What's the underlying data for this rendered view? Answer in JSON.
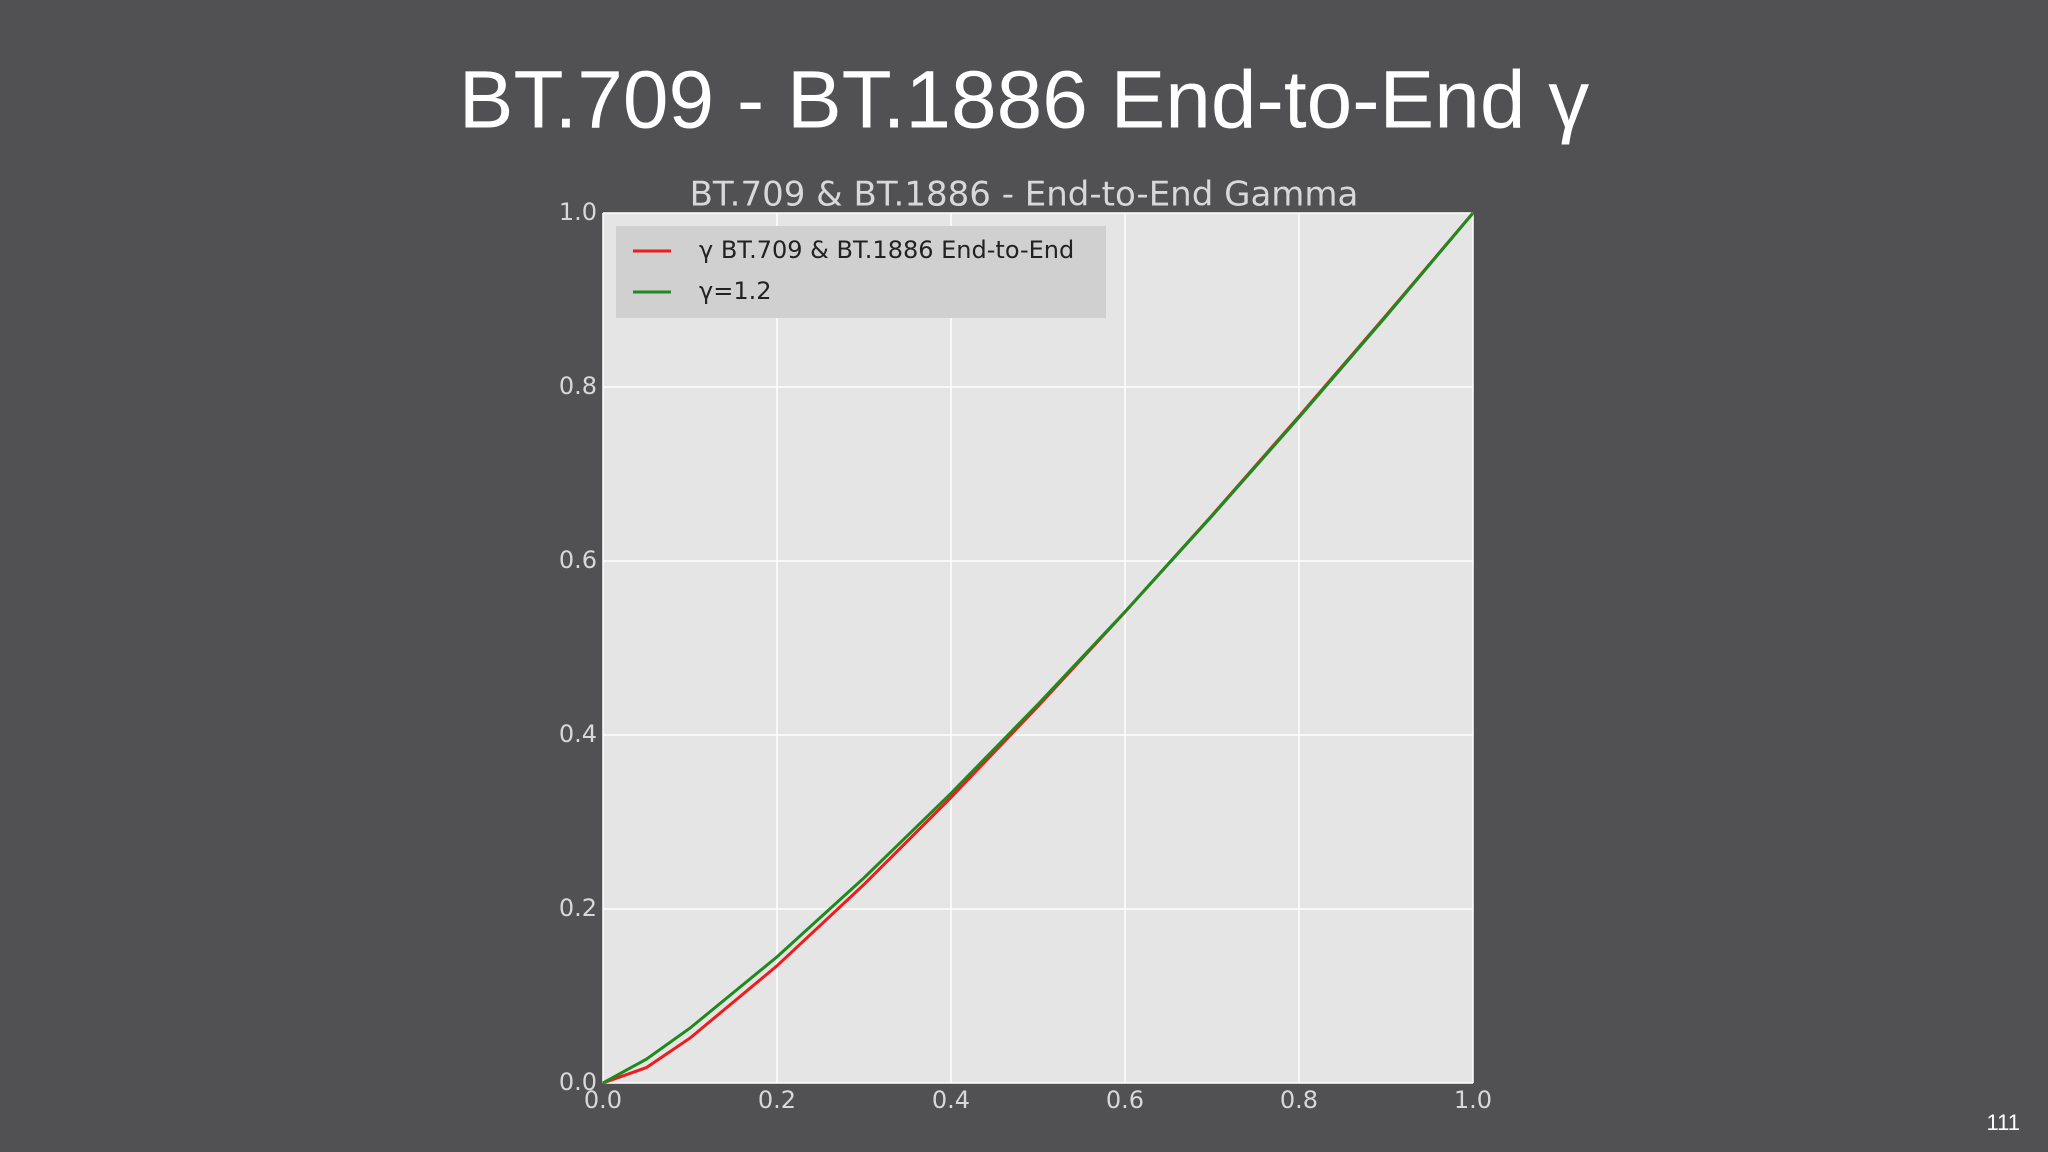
{
  "slide_title": "BT.709 - BT.1886 End-to-End γ",
  "page_number": "111",
  "chart_data": {
    "type": "line",
    "title": "BT.709 & BT.1886 - End-to-End Gamma",
    "x": [
      0,
      0.05,
      0.1,
      0.2,
      0.3,
      0.4,
      0.5,
      0.6,
      0.7,
      0.8,
      0.9,
      1.0
    ],
    "series": [
      {
        "name": "γ BT.709 & BT.1886 End-to-End",
        "color": "#ee1c1c",
        "values": [
          0,
          0.0178,
          0.0516,
          0.1347,
          0.2282,
          0.3283,
          0.4329,
          0.5414,
          0.6525,
          0.7663,
          0.8822,
          1.0
        ]
      },
      {
        "name": "γ=1.2",
        "color": "#1e8a1e",
        "values": [
          0,
          0.0275,
          0.0631,
          0.145,
          0.2358,
          0.333,
          0.4353,
          0.5417,
          0.6518,
          0.7651,
          0.8812,
          1.0
        ]
      }
    ],
    "xlim": [
      0,
      1.0
    ],
    "ylim": [
      0,
      1.0
    ],
    "xticks": [
      {
        "value": 0,
        "label": "0.0"
      },
      0.2,
      0.4,
      0.6,
      0.8,
      {
        "value": 1,
        "label": "1.0"
      }
    ],
    "yticks": [
      {
        "value": 0,
        "label": "0.0"
      },
      0.2,
      0.4,
      0.6,
      0.8,
      {
        "value": 1,
        "label": "1.0"
      }
    ],
    "grid": true,
    "legend": "upper left"
  }
}
